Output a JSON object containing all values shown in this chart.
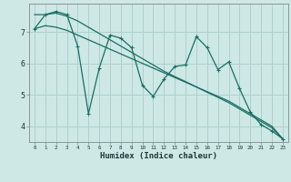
{
  "title": "",
  "xlabel": "Humidex (Indice chaleur)",
  "background_color": "#cde8e5",
  "grid_color": "#afd0cd",
  "line_color": "#1a6e65",
  "x_values": [
    0,
    1,
    2,
    3,
    4,
    5,
    6,
    7,
    8,
    9,
    10,
    11,
    12,
    13,
    14,
    15,
    16,
    17,
    18,
    19,
    20,
    21,
    22,
    23
  ],
  "series_zigzag": [
    7.1,
    7.55,
    7.65,
    7.55,
    6.55,
    4.4,
    5.85,
    6.9,
    6.8,
    6.5,
    5.3,
    4.95,
    5.5,
    5.9,
    5.95,
    6.85,
    6.5,
    5.8,
    6.05,
    5.2,
    4.45,
    4.05,
    3.85,
    3.6
  ],
  "trend_upper": [
    7.55,
    7.55,
    7.6,
    7.5,
    7.35,
    7.15,
    6.95,
    6.75,
    6.55,
    6.35,
    6.15,
    5.95,
    5.75,
    5.58,
    5.42,
    5.25,
    5.08,
    4.92,
    4.75,
    4.55,
    4.35,
    4.15,
    3.95,
    3.6
  ],
  "trend_lower": [
    7.1,
    7.2,
    7.15,
    7.05,
    6.9,
    6.75,
    6.6,
    6.45,
    6.3,
    6.15,
    6.0,
    5.85,
    5.7,
    5.55,
    5.4,
    5.25,
    5.1,
    4.95,
    4.8,
    4.6,
    4.4,
    4.2,
    4.0,
    3.6
  ],
  "ylim": [
    3.5,
    7.9
  ],
  "yticks": [
    4,
    5,
    6,
    7
  ],
  "xlim": [
    -0.5,
    23.5
  ]
}
